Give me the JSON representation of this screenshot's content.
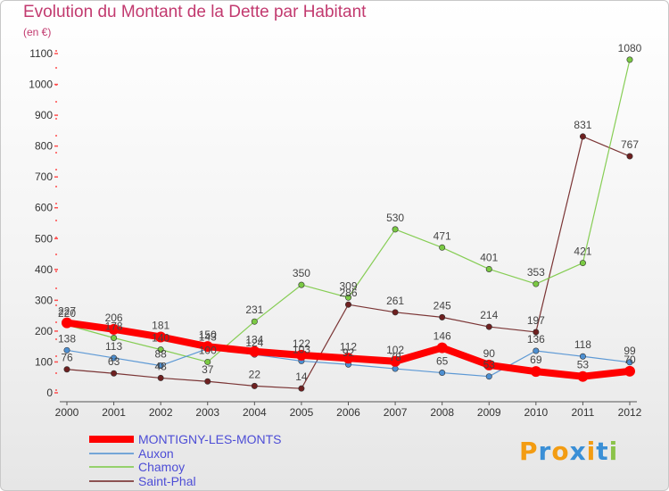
{
  "header": {
    "title": "Evolution du Montant de la Dette par Habitant",
    "subtitle": "(en €)"
  },
  "logo": {
    "text": "Proxiti",
    "letters": [
      "P",
      "r",
      "o",
      "x",
      "i",
      "t",
      "i"
    ],
    "colors": [
      "#f39c12",
      "#3a8fd6",
      "#f39c12",
      "#3a8fd6",
      "#f39c12",
      "#3a8fd6",
      "#8bc34a"
    ]
  },
  "chart_data": {
    "type": "line",
    "title": "Evolution du Montant de la Dette par Habitant",
    "subtitle": "(en €)",
    "x": [
      "2000",
      "2001",
      "2002",
      "2003",
      "2004",
      "2005",
      "2006",
      "2007",
      "2008",
      "2009",
      "2010",
      "2011",
      "2012"
    ],
    "ylim": [
      0,
      1100
    ],
    "yticks": [
      0,
      100,
      200,
      300,
      400,
      500,
      600,
      700,
      800,
      900,
      1000,
      1100
    ],
    "grid": false,
    "legend_position": "bottom-left",
    "series": [
      {
        "name": "MONTIGNY-LES-MONTS",
        "color": "#ff0000",
        "values": [
          227,
          206,
          181,
          150,
          134,
          122,
          112,
          102,
          146,
          90,
          69,
          53,
          70
        ],
        "labels": [
          "227",
          "206",
          "181",
          "150",
          "134",
          "122",
          "112",
          "102",
          "146",
          "90",
          "69",
          "53",
          "70"
        ]
      },
      {
        "name": "Auxon",
        "color": "#4d8fd1",
        "values": [
          138,
          113,
          88,
          143,
          124,
          103,
          92,
          78,
          65,
          53,
          136,
          118,
          99
        ],
        "labels": [
          "138",
          "113",
          "88",
          "143",
          "124",
          "103",
          "92",
          "78",
          "65",
          "53",
          "136",
          "118",
          "99"
        ]
      },
      {
        "name": "Chamoy",
        "color": "#7ac943",
        "values": [
          220,
          178,
          140,
          100,
          231,
          350,
          309,
          530,
          471,
          401,
          353,
          421,
          1080
        ],
        "labels": [
          "220",
          "178",
          "140",
          "100",
          "231",
          "350",
          "309",
          "530",
          "471",
          "401",
          "353",
          "421",
          "1080"
        ]
      },
      {
        "name": "Saint-Phal",
        "color": "#6e2020",
        "values": [
          76,
          63,
          48,
          37,
          22,
          14,
          286,
          261,
          245,
          214,
          197,
          831,
          767
        ],
        "labels": [
          "76",
          "63",
          "48",
          "37",
          "22",
          "14",
          "286",
          "261",
          "245",
          "214",
          "197",
          "831",
          "767"
        ]
      }
    ],
    "series_order_draw": [
      3,
      2,
      1,
      0
    ],
    "line_widths": [
      8,
      1.2,
      1.2,
      1.2
    ]
  }
}
